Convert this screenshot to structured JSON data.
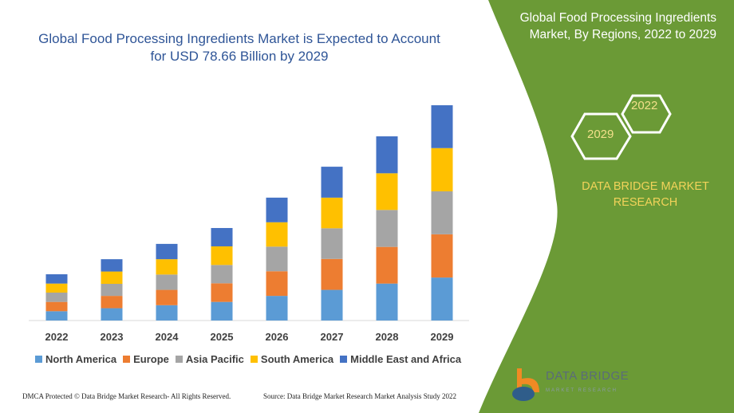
{
  "title": "Global Food Processing Ingredients Market is Expected to Account for USD 78.66 Billion by 2029",
  "side_panel": {
    "title": "Global Food Processing Ingredients Market, By Regions, 2022 to 2029",
    "hex_start": "2022",
    "hex_end": "2029",
    "brand": "DATA BRIDGE MARKET RESEARCH",
    "color": "#6b9a36"
  },
  "logo": {
    "text": "DATA BRIDGE",
    "sub": "MARKET RESEARCH"
  },
  "footer": {
    "left": "DMCA Protected © Data Bridge Market Research- All Rights Reserved.",
    "right": "Source: Data Bridge Market Research Market Analysis Study 2022"
  },
  "chart_data": {
    "type": "bar",
    "stacked": true,
    "categories": [
      "2022",
      "2023",
      "2024",
      "2025",
      "2026",
      "2027",
      "2028",
      "2029"
    ],
    "series": [
      {
        "name": "North America",
        "color": "#5b9bd5",
        "values": [
          3.4,
          4.5,
          5.6,
          6.8,
          9.0,
          11.2,
          13.5,
          15.7
        ]
      },
      {
        "name": "Europe",
        "color": "#ed7d31",
        "values": [
          3.4,
          4.5,
          5.6,
          6.8,
          9.0,
          11.3,
          13.4,
          15.8
        ]
      },
      {
        "name": "Asia Pacific",
        "color": "#a5a5a5",
        "values": [
          3.4,
          4.4,
          5.6,
          6.7,
          9.0,
          11.2,
          13.5,
          15.7
        ]
      },
      {
        "name": "South America",
        "color": "#ffc000",
        "values": [
          3.3,
          4.5,
          5.6,
          6.8,
          8.9,
          11.2,
          13.4,
          15.8
        ]
      },
      {
        "name": "Middle East and Africa",
        "color": "#4472c4",
        "values": [
          3.4,
          4.5,
          5.6,
          6.7,
          9.0,
          11.3,
          13.5,
          15.66
        ]
      }
    ],
    "legend_position": "bottom",
    "grid": false,
    "ylim": [
      0,
      80
    ]
  }
}
